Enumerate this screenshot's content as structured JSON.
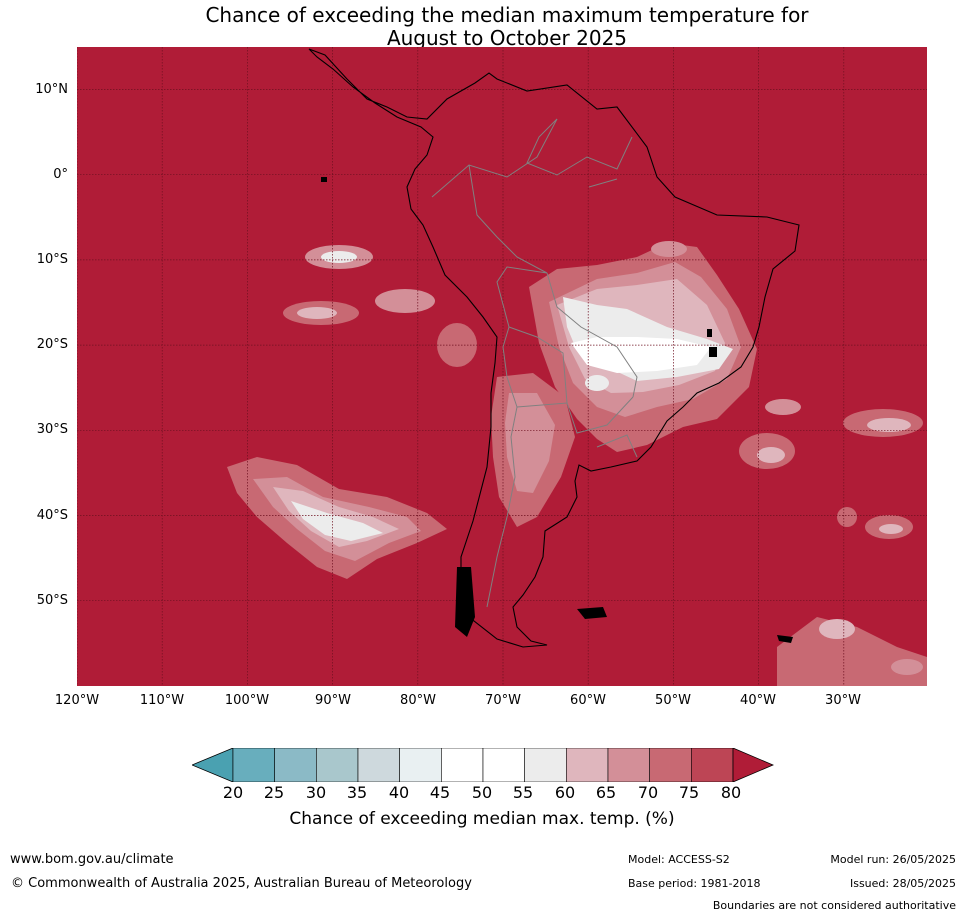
{
  "title": {
    "line1": "Chance of exceeding the median maximum temperature for",
    "line2": "August to October 2025"
  },
  "map": {
    "background_color": "#b01c37",
    "land_outline_color": "#000000",
    "border_color": "#808080",
    "gridline_color": "#6e1020",
    "lat_labels": [
      "10°N",
      "0°",
      "10°S",
      "20°S",
      "30°S",
      "40°S",
      "50°S"
    ],
    "lon_labels": [
      "120°W",
      "110°W",
      "100°W",
      "90°W",
      "80°W",
      "70°W",
      "60°W",
      "50°W",
      "40°W",
      "30°W"
    ]
  },
  "colorbar": {
    "ticks": [
      "20",
      "25",
      "30",
      "35",
      "40",
      "45",
      "50",
      "55",
      "60",
      "65",
      "70",
      "75",
      "80"
    ],
    "low_extend_color": "#4aa1b1",
    "high_extend_color": "#b01c37",
    "colors": [
      "#68aebd",
      "#8bbac6",
      "#a9c7cc",
      "#ced9dd",
      "#e9f0f2",
      "#ffffff",
      "#ffffff",
      "#ececec",
      "#dfb6bd",
      "#d38f98",
      "#c86973",
      "#bd4555"
    ],
    "label": "Chance of exceeding median max. temp. (%)"
  },
  "footer": {
    "url": "www.bom.gov.au/climate",
    "copyright": "© Commonwealth of Australia 2025, Australian Bureau of Meteorology",
    "model": "Model: ACCESS-S2",
    "base_period": "Base period: 1981-2018",
    "model_run": "Model run: 26/05/2025",
    "issued": "Issued: 28/05/2025",
    "disclaimer": "Boundaries are not considered authoritative"
  }
}
